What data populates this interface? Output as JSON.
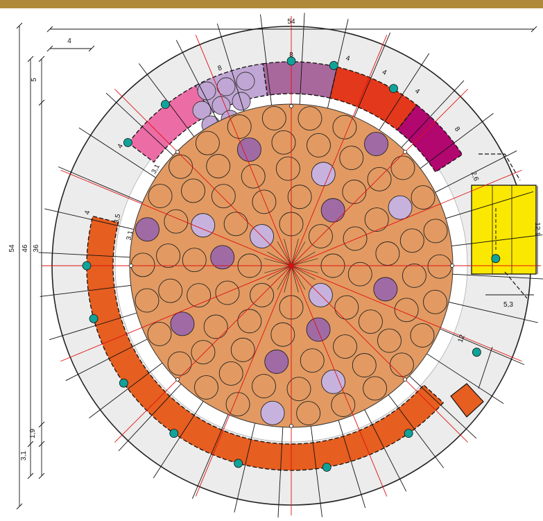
{
  "colors": {
    "ring": "#ececec",
    "core": "#e29a62",
    "orange": "#e65e20",
    "pink": "#ec6ca5",
    "lavender": "#c0a6d4",
    "mauve": "#a8689c",
    "red": "#e3381b",
    "magenta": "#b2076f",
    "yellow": "#fbe800",
    "teal": "#10a39a",
    "dark_circle": "#a06ba5",
    "light_circle": "#c7b2de",
    "guide_red": "#e01010",
    "texture": "#b08a3a"
  },
  "dimensions": {
    "top_total": "54",
    "left_total": "54",
    "ring_inner": "46",
    "core_dia": "36",
    "gap_top": "5",
    "offset_small": "4",
    "seg_pink": "4",
    "seg_lavender": "8",
    "seg_mauve": "8",
    "seg_red_a": "4",
    "seg_red_b": "4",
    "seg_red_c": "4",
    "seg_magenta": "8",
    "seg_orange": "4",
    "gap_pink": "3,1",
    "gap_orange_a": "3,5",
    "gap_orange_b": "3,1",
    "gap_right": "2,6",
    "yellow_height": "12,1",
    "yellow_width": "5,3",
    "diag_right": "12",
    "bottom_a": "1,9",
    "bottom_b": "3,1"
  }
}
